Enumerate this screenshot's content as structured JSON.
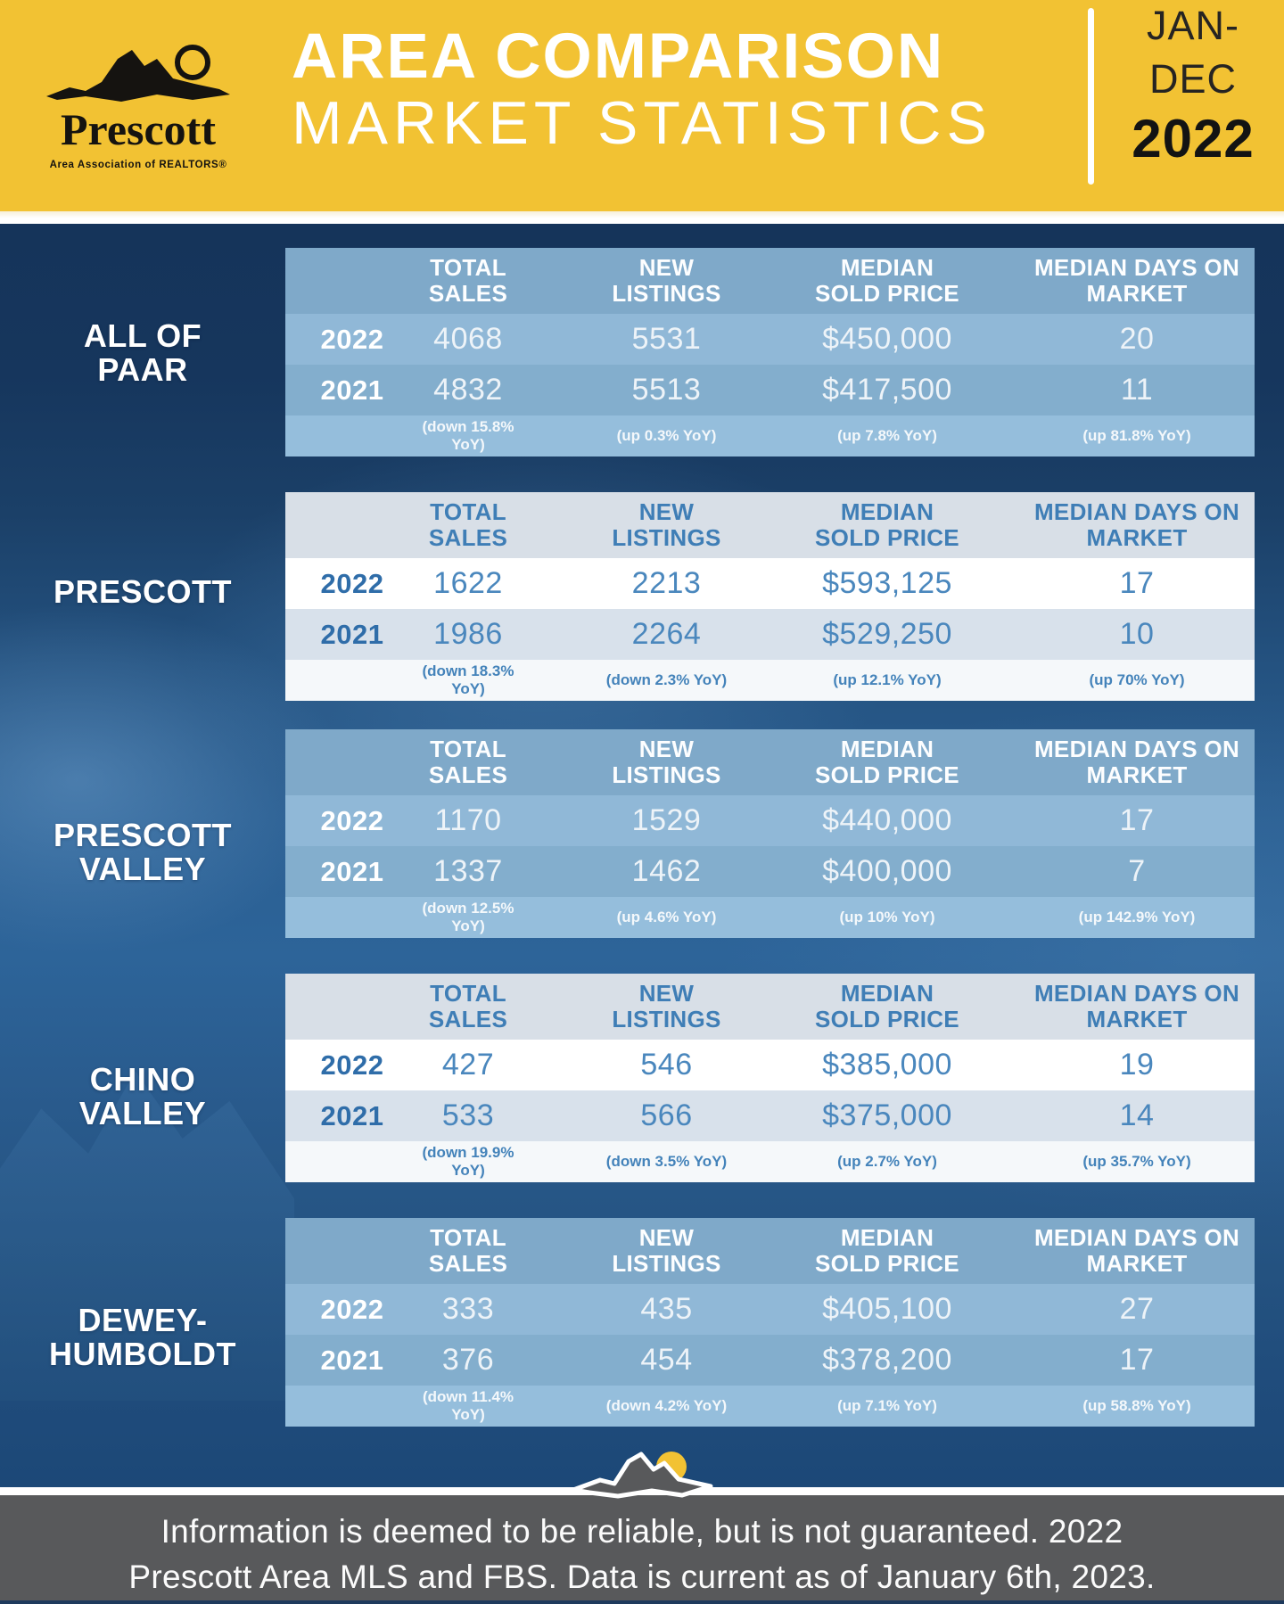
{
  "header": {
    "logo": {
      "brand": "Prescott",
      "subtitle": "Area Association of REALTORS®"
    },
    "title_line1": "AREA COMPARISON",
    "title_line2": "MARKET STATISTICS",
    "period": {
      "line1": "JAN-",
      "line2": "DEC",
      "year": "2022"
    }
  },
  "columns": [
    "TOTAL SALES",
    "NEW LISTINGS",
    "MEDIAN SOLD PRICE",
    "MEDIAN DAYS ON MARKET"
  ],
  "tables": [
    {
      "area": "ALL OF\nPAAR",
      "style": "blue",
      "rows": [
        {
          "year": "2022",
          "total_sales": "4068",
          "new_listings": "5531",
          "median_sold_price": "$450,000",
          "median_days_on_market": "20"
        },
        {
          "year": "2021",
          "total_sales": "4832",
          "new_listings": "5513",
          "median_sold_price": "$417,500",
          "median_days_on_market": "11"
        }
      ],
      "yoy": [
        "(down 15.8% YoY)",
        "(up 0.3% YoY)",
        "(up 7.8% YoY)",
        "(up 81.8% YoY)"
      ]
    },
    {
      "area": "PRESCOTT",
      "style": "light",
      "rows": [
        {
          "year": "2022",
          "total_sales": "1622",
          "new_listings": "2213",
          "median_sold_price": "$593,125",
          "median_days_on_market": "17"
        },
        {
          "year": "2021",
          "total_sales": "1986",
          "new_listings": "2264",
          "median_sold_price": "$529,250",
          "median_days_on_market": "10"
        }
      ],
      "yoy": [
        "(down 18.3% YoY)",
        "(down 2.3% YoY)",
        "(up 12.1% YoY)",
        "(up 70% YoY)"
      ]
    },
    {
      "area": "PRESCOTT\nVALLEY",
      "style": "blue",
      "rows": [
        {
          "year": "2022",
          "total_sales": "1170",
          "new_listings": "1529",
          "median_sold_price": "$440,000",
          "median_days_on_market": "17"
        },
        {
          "year": "2021",
          "total_sales": "1337",
          "new_listings": "1462",
          "median_sold_price": "$400,000",
          "median_days_on_market": "7"
        }
      ],
      "yoy": [
        "(down 12.5% YoY)",
        "(up 4.6% YoY)",
        "(up 10% YoY)",
        "(up 142.9% YoY)"
      ]
    },
    {
      "area": "CHINO\nVALLEY",
      "style": "light",
      "rows": [
        {
          "year": "2022",
          "total_sales": "427",
          "new_listings": "546",
          "median_sold_price": "$385,000",
          "median_days_on_market": "19"
        },
        {
          "year": "2021",
          "total_sales": "533",
          "new_listings": "566",
          "median_sold_price": "$375,000",
          "median_days_on_market": "14"
        }
      ],
      "yoy": [
        "(down 19.9% YoY)",
        "(down 3.5% YoY)",
        "(up 2.7% YoY)",
        "(up 35.7% YoY)"
      ]
    },
    {
      "area": "DEWEY-\nHUMBOLDT",
      "style": "blue",
      "rows": [
        {
          "year": "2022",
          "total_sales": "333",
          "new_listings": "435",
          "median_sold_price": "$405,100",
          "median_days_on_market": "27"
        },
        {
          "year": "2021",
          "total_sales": "376",
          "new_listings": "454",
          "median_sold_price": "$378,200",
          "median_days_on_market": "17"
        }
      ],
      "yoy": [
        "(down 11.4% YoY)",
        "(down 4.2% YoY)",
        "(up 7.1% YoY)",
        "(up 58.8% YoY)"
      ]
    }
  ],
  "footer": {
    "lines": [
      "Information is deemed to be reliable, but is not guaranteed. 2022",
      "Prescott Area MLS and FBS. Data is current as of January 6th, 2023."
    ]
  },
  "colors": {
    "header_yellow": "#F2C233",
    "navy": "#16365C",
    "blue_text": "#3F7EB6",
    "footer_gray": "#58595B",
    "table_blue_header": "#7FA9C9",
    "table_blue_row_2022": "#90B8D7",
    "table_blue_row_2021": "#83AECD",
    "table_blue_row_yoy": "#95BEDC",
    "table_light_header": "#D8DFE7",
    "table_light_row_2022": "#FFFFFF",
    "table_light_row_2021": "#D8E1EB",
    "table_light_row_yoy": "#F5F8FA",
    "sun_yellow": "#F2C233"
  }
}
